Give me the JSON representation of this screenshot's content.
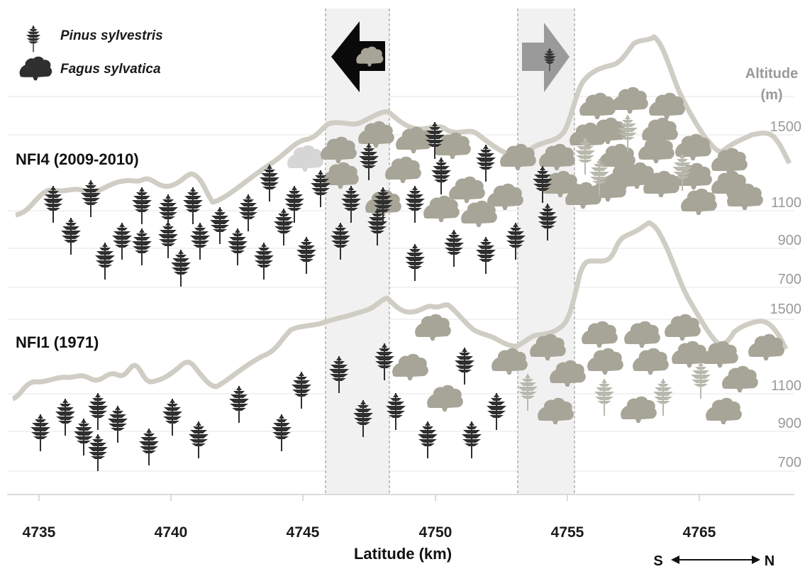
{
  "colors": {
    "pine": "#2f2f2f",
    "pine_light": "#b8b8ad",
    "beech": "#a6a597",
    "profile": "#cfcdc4",
    "band": "#f1f1f1",
    "gridline": "#e6e6e6",
    "band_edge": "#8c8c8c"
  },
  "legend": {
    "pine_label": "Pinus sylvestris",
    "beech_label": "Fagus sylvatica"
  },
  "panels": {
    "top_label": "NFI4 (2009-2010)",
    "bottom_label": "NFI1 (1971)"
  },
  "altitude_axis": {
    "title_line1": "Altitude",
    "title_line2": "(m)",
    "top_ticks": [
      "1500",
      "1100",
      "900",
      "700"
    ],
    "bottom_ticks": [
      "1500",
      "1100",
      "900",
      "700"
    ]
  },
  "x_axis": {
    "label": "Latitude (km)",
    "ticks": [
      "4735",
      "4740",
      "4745",
      "4750",
      "4755",
      "4765"
    ]
  },
  "compass": {
    "south": "S",
    "north": "N"
  },
  "arrows": {
    "left": "beech-advance-arrow",
    "right": "pine-advance-arrow"
  },
  "trees": {
    "top_pines": [
      [
        75,
        290
      ],
      [
        128,
        282
      ],
      [
        100,
        335
      ],
      [
        148,
        370
      ],
      [
        172,
        342
      ],
      [
        200,
        292
      ],
      [
        200,
        350
      ],
      [
        237,
        302
      ],
      [
        237,
        340
      ],
      [
        255,
        380
      ],
      [
        272,
        292
      ],
      [
        282,
        342
      ],
      [
        310,
        320
      ],
      [
        350,
        302
      ],
      [
        335,
        350
      ],
      [
        372,
        370
      ],
      [
        380,
        260
      ],
      [
        400,
        322
      ],
      [
        415,
        290
      ],
      [
        432,
        362
      ],
      [
        452,
        268
      ],
      [
        480,
        342
      ],
      [
        495,
        290
      ],
      [
        520,
        230
      ],
      [
        532,
        322
      ],
      [
        540,
        292
      ],
      [
        585,
        290
      ],
      [
        585,
        372
      ],
      [
        613,
        200
      ],
      [
        622,
        250
      ],
      [
        640,
        352
      ],
      [
        685,
        232
      ],
      [
        685,
        362
      ],
      [
        727,
        342
      ],
      [
        765,
        262
      ],
      [
        772,
        315
      ]
    ],
    "top_pines_light": [
      [
        825,
        222
      ],
      [
        845,
        252
      ],
      [
        885,
        190
      ],
      [
        962,
        245
      ]
    ],
    "top_beeches": [
      [
        430,
        224
      ],
      [
        477,
        212
      ],
      [
        480,
        248
      ],
      [
        530,
        190
      ],
      [
        568,
        240
      ],
      [
        583,
        198
      ],
      [
        540,
        287
      ],
      [
        638,
        206
      ],
      [
        658,
        268
      ],
      [
        622,
        295
      ],
      [
        675,
        302
      ],
      [
        712,
        278
      ],
      [
        730,
        222
      ],
      [
        785,
        222
      ],
      [
        790,
        260
      ],
      [
        842,
        150
      ],
      [
        888,
        142
      ],
      [
        940,
        150
      ],
      [
        828,
        192
      ],
      [
        857,
        185
      ],
      [
        930,
        185
      ],
      [
        870,
        222
      ],
      [
        925,
        212
      ],
      [
        977,
        208
      ],
      [
        857,
        266
      ],
      [
        880,
        250
      ],
      [
        898,
        248
      ],
      [
        932,
        260
      ],
      [
        978,
        249
      ],
      [
        1028,
        228
      ],
      [
        1028,
        260
      ],
      [
        1050,
        278
      ],
      [
        822,
        276
      ],
      [
        985,
        285
      ]
    ],
    "top_beech_light": [
      [
        430,
        224
      ]
    ],
    "bottom_pines": [
      [
        57,
        612
      ],
      [
        92,
        590
      ],
      [
        118,
        618
      ],
      [
        138,
        582
      ],
      [
        138,
        640
      ],
      [
        166,
        600
      ],
      [
        210,
        632
      ],
      [
        243,
        590
      ],
      [
        280,
        622
      ],
      [
        337,
        572
      ],
      [
        397,
        612
      ],
      [
        425,
        552
      ],
      [
        478,
        530
      ],
      [
        512,
        592
      ],
      [
        542,
        512
      ],
      [
        558,
        582
      ],
      [
        603,
        622
      ],
      [
        655,
        518
      ],
      [
        665,
        622
      ],
      [
        700,
        582
      ]
    ],
    "bottom_pines_light": [
      [
        744,
        555
      ],
      [
        852,
        562
      ],
      [
        935,
        562
      ],
      [
        988,
        538
      ]
    ],
    "bottom_beeches": [
      [
        610,
        462
      ],
      [
        578,
        518
      ],
      [
        627,
        562
      ],
      [
        718,
        510
      ],
      [
        772,
        490
      ],
      [
        800,
        527
      ],
      [
        783,
        580
      ],
      [
        845,
        472
      ],
      [
        853,
        510
      ],
      [
        905,
        472
      ],
      [
        917,
        510
      ],
      [
        962,
        462
      ],
      [
        972,
        500
      ],
      [
        1015,
        500
      ],
      [
        1080,
        490
      ],
      [
        1043,
        535
      ],
      [
        900,
        578
      ],
      [
        1020,
        580
      ]
    ]
  }
}
